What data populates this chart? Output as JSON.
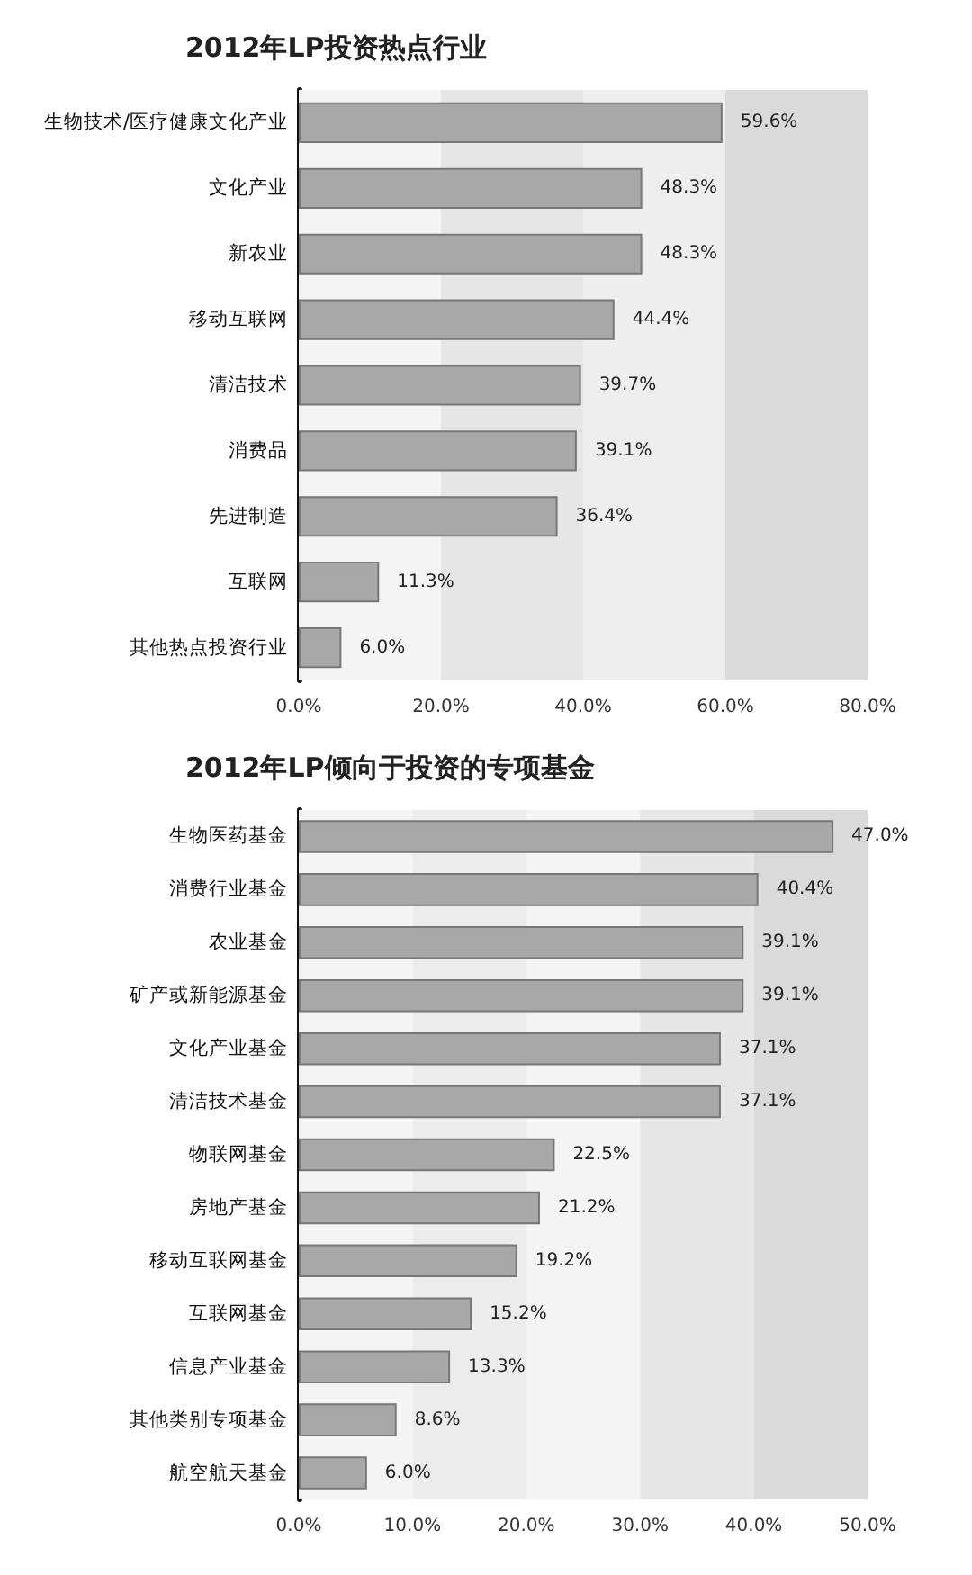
{
  "chart_data": [
    {
      "type": "bar",
      "orientation": "horizontal",
      "title": "2012年LP投资热点行业",
      "categories": [
        "生物技术/医疗健康文化产业",
        "文化产业",
        "新农业",
        "移动互联网",
        "清洁技术",
        "消费品",
        "先进制造",
        "互联网",
        "其他热点投资行业"
      ],
      "values": [
        59.6,
        48.3,
        48.3,
        44.4,
        39.7,
        39.1,
        36.4,
        11.3,
        6.0
      ],
      "value_labels": [
        "59.6%",
        "48.3%",
        "48.3%",
        "44.4%",
        "39.7%",
        "39.1%",
        "36.4%",
        "11.3%",
        "6.0%"
      ],
      "color": "#a8a8a8",
      "xlim": [
        0,
        80
      ],
      "xticks": [
        {
          "value": 0,
          "label": "0.0%"
        },
        {
          "value": 20,
          "label": "20.0%"
        },
        {
          "value": 40,
          "label": "40.0%"
        },
        {
          "value": 60,
          "label": "60.0%"
        },
        {
          "value": 80,
          "label": "80.0%"
        }
      ],
      "grid": false,
      "bands": [
        {
          "axis": "x",
          "from": 0,
          "to": 20,
          "color": "#f4f4f4"
        },
        {
          "axis": "x",
          "from": 20,
          "to": 40,
          "color": "#e6e6e6"
        },
        {
          "axis": "x",
          "from": 40,
          "to": 60,
          "color": "#eeeeee"
        },
        {
          "axis": "x",
          "from": 60,
          "to": 80,
          "color": "#dadada"
        }
      ]
    },
    {
      "type": "bar",
      "orientation": "horizontal",
      "title": "2012年LP倾向于投资的专项基金",
      "categories": [
        "生物医药基金",
        "消费行业基金",
        "农业基金",
        "矿产或新能源基金",
        "文化产业基金",
        "清洁技术基金",
        "物联网基金",
        "房地产基金",
        "移动互联网基金",
        "互联网基金",
        "信息产业基金",
        "其他类别专项基金",
        "航空航天基金"
      ],
      "values": [
        47.0,
        40.4,
        39.1,
        39.1,
        37.1,
        37.1,
        22.5,
        21.2,
        19.2,
        15.2,
        13.3,
        8.6,
        6.0
      ],
      "value_labels": [
        "47.0%",
        "40.4%",
        "39.1%",
        "39.1%",
        "37.1%",
        "37.1%",
        "22.5%",
        "21.2%",
        "19.2%",
        "15.2%",
        "13.3%",
        "8.6%",
        "6.0%"
      ],
      "color": "#a8a8a8",
      "xlim": [
        0,
        50
      ],
      "xticks": [
        {
          "value": 0,
          "label": "0.0%"
        },
        {
          "value": 10,
          "label": "10.0%"
        },
        {
          "value": 20,
          "label": "20.0%"
        },
        {
          "value": 30,
          "label": "30.0%"
        },
        {
          "value": 40,
          "label": "40.0%"
        },
        {
          "value": 50,
          "label": "50.0%"
        }
      ],
      "grid": false,
      "bands": [
        {
          "axis": "x",
          "from": 0,
          "to": 10,
          "color": "#f4f4f4"
        },
        {
          "axis": "x",
          "from": 10,
          "to": 20,
          "color": "#ececec"
        },
        {
          "axis": "x",
          "from": 20,
          "to": 30,
          "color": "#f4f4f4"
        },
        {
          "axis": "x",
          "from": 30,
          "to": 40,
          "color": "#e6e6e6"
        },
        {
          "axis": "x",
          "from": 40,
          "to": 50,
          "color": "#dadada"
        }
      ]
    }
  ]
}
